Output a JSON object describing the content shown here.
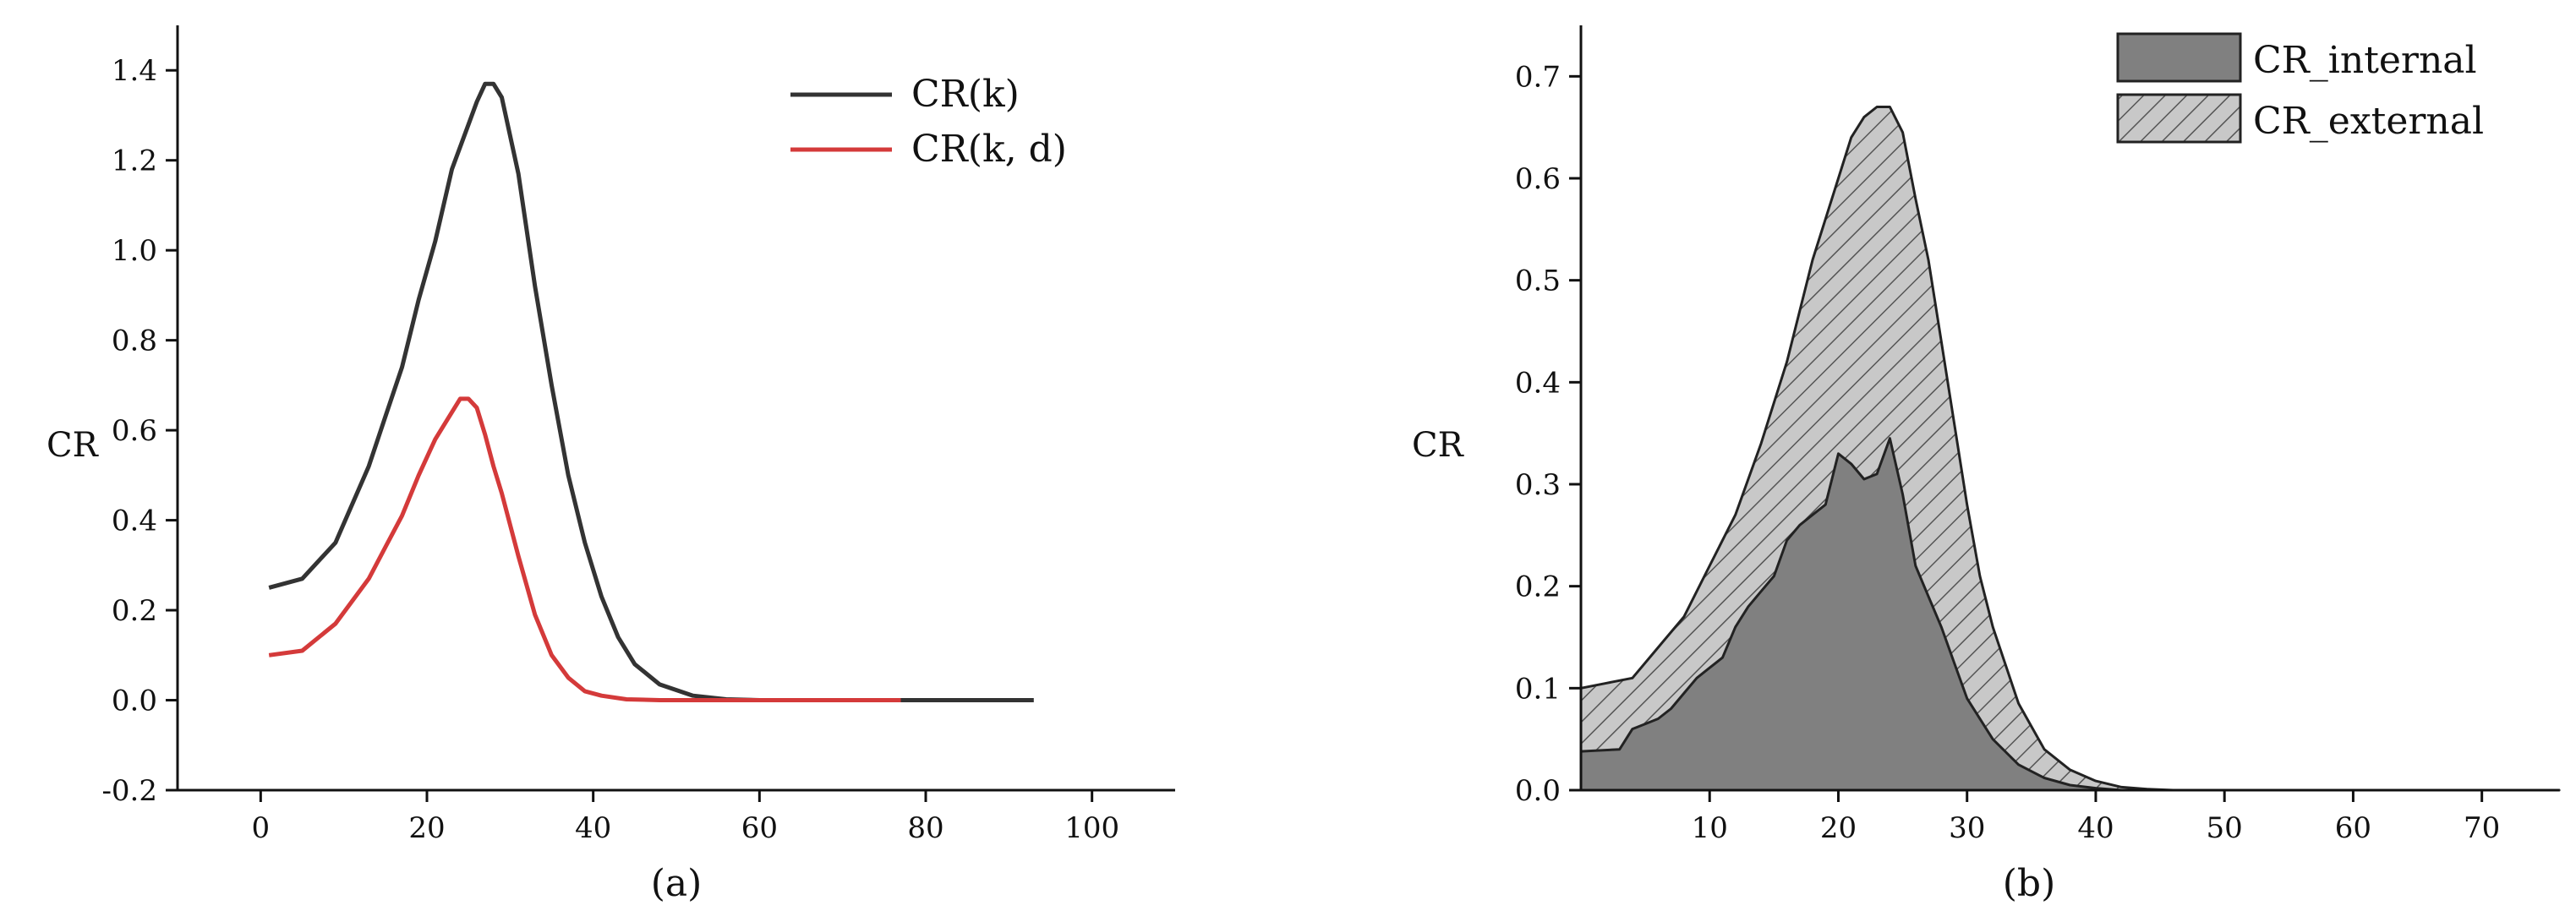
{
  "chart_data": [
    {
      "type": "line",
      "panel_label": "(a)",
      "title": "",
      "xlabel": "",
      "ylabel": "CR",
      "xlim": [
        -10,
        110
      ],
      "ylim": [
        -0.2,
        1.5
      ],
      "x_ticks": [
        0,
        20,
        40,
        60,
        80,
        100
      ],
      "y_ticks": [
        -0.2,
        0.0,
        0.2,
        0.4,
        0.6,
        0.8,
        1.0,
        1.2,
        1.4
      ],
      "x_tick_labels": [
        "0",
        "20",
        "40",
        "60",
        "80",
        "100"
      ],
      "y_tick_labels": [
        "-0.2",
        "0.0",
        "0.2",
        "0.4",
        "0.6",
        "0.8",
        "1.0",
        "1.2",
        "1.4"
      ],
      "legend_position": "top-right",
      "grid": false,
      "series": [
        {
          "name": "CR(k)",
          "color": "#333333",
          "x": [
            1,
            5,
            9,
            13,
            15,
            17,
            19,
            21,
            23,
            25,
            26,
            27,
            28,
            29,
            31,
            33,
            35,
            37,
            39,
            41,
            43,
            45,
            48,
            52,
            56,
            60,
            70,
            80,
            93
          ],
          "y": [
            0.25,
            0.27,
            0.35,
            0.52,
            0.63,
            0.74,
            0.89,
            1.02,
            1.18,
            1.28,
            1.33,
            1.37,
            1.37,
            1.34,
            1.17,
            0.92,
            0.7,
            0.5,
            0.35,
            0.23,
            0.14,
            0.08,
            0.035,
            0.01,
            0.002,
            0.0,
            0.0,
            0.0,
            0.0
          ]
        },
        {
          "name": "CR(k, d)",
          "color": "#d43a3a",
          "x": [
            1,
            5,
            9,
            13,
            15,
            17,
            19,
            21,
            23,
            24,
            25,
            26,
            27,
            28,
            29,
            31,
            33,
            35,
            37,
            39,
            41,
            44,
            48,
            55,
            65,
            77
          ],
          "y": [
            0.1,
            0.11,
            0.17,
            0.27,
            0.34,
            0.41,
            0.5,
            0.58,
            0.64,
            0.67,
            0.67,
            0.65,
            0.59,
            0.52,
            0.46,
            0.32,
            0.19,
            0.1,
            0.05,
            0.02,
            0.01,
            0.002,
            0.0,
            0.0,
            0.0,
            0.0
          ]
        }
      ]
    },
    {
      "type": "area",
      "stacked": true,
      "panel_label": "(b)",
      "title": "",
      "xlabel": "",
      "ylabel": "CR",
      "xlim": [
        0,
        76
      ],
      "ylim": [
        0,
        0.75
      ],
      "x_ticks": [
        10,
        20,
        30,
        40,
        50,
        60,
        70
      ],
      "y_ticks": [
        0.0,
        0.1,
        0.2,
        0.3,
        0.4,
        0.5,
        0.6,
        0.7
      ],
      "x_tick_labels": [
        "10",
        "20",
        "30",
        "40",
        "50",
        "60",
        "70"
      ],
      "y_tick_labels": [
        "0.0",
        "0.1",
        "0.2",
        "0.3",
        "0.4",
        "0.5",
        "0.6",
        "0.7"
      ],
      "legend_position": "top-right",
      "grid": false,
      "series": [
        {
          "name": "CR_internal",
          "fill": "#808080",
          "pattern": "solid",
          "x": [
            0,
            3,
            4,
            5,
            6,
            7,
            8,
            9,
            10,
            11,
            12,
            13,
            14,
            15,
            16,
            17,
            18,
            19,
            20,
            21,
            22,
            23,
            24,
            25,
            26,
            27,
            28,
            29,
            30,
            32,
            34,
            36,
            38,
            40,
            42,
            44,
            46,
            50,
            60,
            76
          ],
          "y": [
            0.038,
            0.04,
            0.06,
            0.065,
            0.07,
            0.08,
            0.095,
            0.11,
            0.12,
            0.13,
            0.16,
            0.18,
            0.195,
            0.21,
            0.245,
            0.26,
            0.27,
            0.28,
            0.33,
            0.32,
            0.305,
            0.31,
            0.345,
            0.29,
            0.22,
            0.19,
            0.16,
            0.125,
            0.09,
            0.05,
            0.025,
            0.012,
            0.005,
            0.002,
            0.0,
            0.0,
            0.0,
            0.0,
            0.0,
            0.0
          ]
        },
        {
          "name": "CR_external",
          "fill": "#c8c8c8",
          "pattern": "hatched",
          "total_x": [
            0,
            2,
            4,
            6,
            8,
            10,
            12,
            14,
            16,
            18,
            20,
            21,
            22,
            23,
            24,
            25,
            26,
            27,
            28,
            29,
            30,
            31,
            32,
            34,
            36,
            38,
            40,
            42,
            44,
            46,
            50,
            60,
            76
          ],
          "total_y": [
            0.1,
            0.105,
            0.11,
            0.14,
            0.17,
            0.22,
            0.27,
            0.34,
            0.42,
            0.52,
            0.6,
            0.64,
            0.66,
            0.67,
            0.67,
            0.645,
            0.58,
            0.52,
            0.44,
            0.36,
            0.28,
            0.21,
            0.16,
            0.085,
            0.04,
            0.02,
            0.009,
            0.003,
            0.001,
            0.0,
            0.0,
            0.0,
            0.0
          ]
        }
      ]
    }
  ]
}
